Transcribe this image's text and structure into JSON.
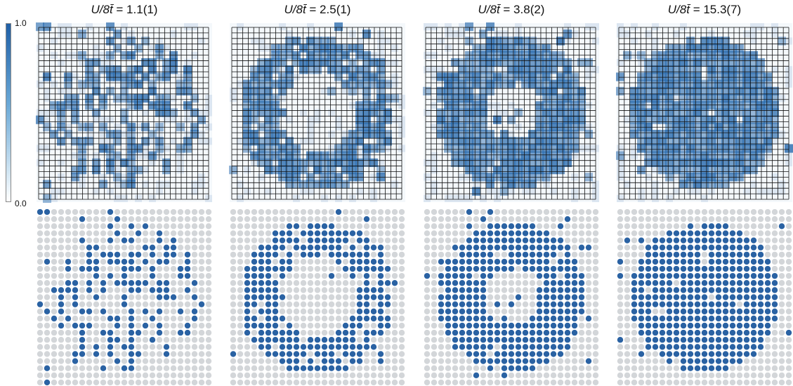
{
  "colorbar": {
    "max_label": "1.0",
    "min_label": "0.0"
  },
  "panels": [
    {
      "title_var": "U/8t̄",
      "title_value": " = 1.1(1)",
      "pattern": "scattered"
    },
    {
      "title_var": "U/8t̄",
      "title_value": " = 2.5(1)",
      "pattern": "ring"
    },
    {
      "title_var": "U/8t̄",
      "title_value": " = 3.8(2)",
      "pattern": "thick-ring"
    },
    {
      "title_var": "U/8t̄",
      "title_value": " = 15.3(7)",
      "pattern": "disk"
    }
  ],
  "colors": {
    "occupied": "#2a62a3",
    "empty": "#d3d6d9",
    "density": "#2f6fb0",
    "grid": "#111111"
  }
}
